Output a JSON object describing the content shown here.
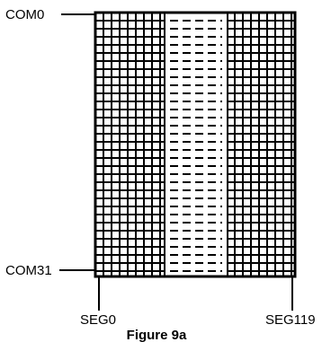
{
  "labels": {
    "com_top": "COM0",
    "com_bottom": "COM31",
    "seg_left": "SEG0",
    "seg_right": "SEG119"
  },
  "caption": "Figure 9a",
  "colors": {
    "line": "#000000",
    "background": "#ffffff"
  }
}
